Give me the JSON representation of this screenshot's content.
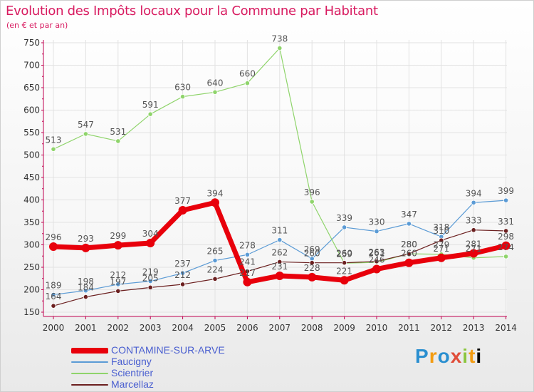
{
  "title": "Evolution des Impôts locaux pour la Commune par Habitant",
  "subtitle": "(en € et par an)",
  "logo_text": "Proxiti",
  "chart_data": {
    "type": "line",
    "x": [
      "2000",
      "2001",
      "2002",
      "2003",
      "2004",
      "2005",
      "2006",
      "2007",
      "2008",
      "2009",
      "2010",
      "2011",
      "2012",
      "2013",
      "2014"
    ],
    "ylim": [
      150,
      750
    ],
    "yticks": [
      150,
      200,
      250,
      300,
      350,
      400,
      450,
      500,
      550,
      600,
      650,
      700,
      750
    ],
    "grid": true,
    "legend_position": "bottom-left",
    "series": [
      {
        "name": "CONTAMINE-SUR-ARVE",
        "color": "#e8000b",
        "width": 7,
        "values": [
          296,
          293,
          299,
          304,
          377,
          394,
          217,
          231,
          228,
          221,
          246,
          260,
          271,
          281,
          298
        ],
        "labels": [
          "296",
          "293",
          "299",
          "304",
          "377",
          "394",
          "217",
          "231",
          "228",
          "221",
          "246",
          "260",
          "271",
          "281",
          "298"
        ]
      },
      {
        "name": "Faucigny",
        "color": "#5b9bd5",
        "width": 1.2,
        "values": [
          189,
          198,
          212,
          219,
          237,
          265,
          278,
          311,
          269,
          339,
          330,
          347,
          318,
          394,
          399
        ],
        "labels": [
          "189",
          "198",
          "212",
          "219",
          "237",
          "265",
          "278",
          "311",
          "269",
          "339",
          "330",
          "347",
          "318",
          "394",
          "399"
        ]
      },
      {
        "name": "Scientrier",
        "color": "#8fd46b",
        "width": 1.2,
        "values": [
          513,
          547,
          531,
          591,
          630,
          640,
          660,
          738,
          396,
          259,
          261,
          280,
          279,
          271,
          274
        ],
        "labels": [
          "513",
          "547",
          "531",
          "591",
          "630",
          "640",
          "660",
          "738",
          "396",
          "259",
          "261",
          "280",
          "279",
          "271",
          "274"
        ]
      },
      {
        "name": "Marcellaz",
        "color": "#6b1f1f",
        "width": 1.2,
        "values": [
          164,
          184,
          197,
          205,
          212,
          224,
          241,
          262,
          260,
          260,
          263,
          280,
          310,
          333,
          331
        ],
        "labels": [
          "164",
          "184",
          "197",
          "205",
          "212",
          "224",
          "241",
          "262",
          "260",
          "260",
          "263",
          "280",
          "310",
          "333",
          "331"
        ]
      }
    ]
  }
}
